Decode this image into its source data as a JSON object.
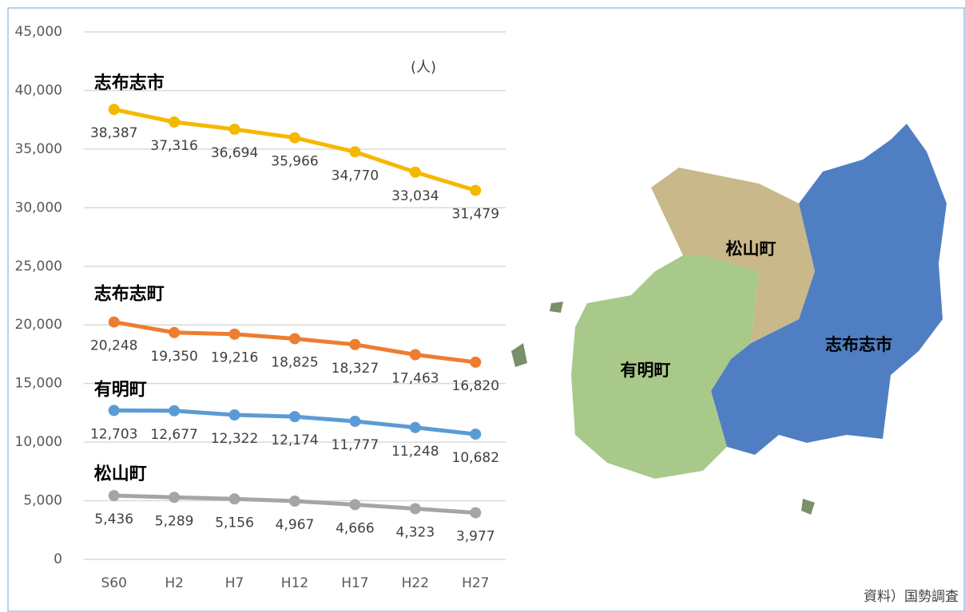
{
  "chart_data": {
    "type": "line",
    "unit": "(人)",
    "source": "資料）国勢調査",
    "categories": [
      "S60",
      "H2",
      "H7",
      "H12",
      "H17",
      "H22",
      "H27"
    ],
    "ylim": [
      0,
      45000
    ],
    "yticks": [
      0,
      {
        "value": 5000,
        "label": "5,000"
      },
      {
        "value": 10000,
        "label": "10,000"
      },
      {
        "value": 15000,
        "label": "15,000"
      },
      {
        "value": 20000,
        "label": "20,000"
      },
      {
        "value": 25000,
        "label": "25,000"
      },
      {
        "value": 30000,
        "label": "30,000"
      },
      {
        "value": 35000,
        "label": "35,000"
      },
      {
        "value": 40000,
        "label": "40,000"
      },
      {
        "value": 45000,
        "label": "45,000"
      }
    ],
    "grid": true,
    "series": [
      {
        "name": "志布志市",
        "color": "#f5b800",
        "values": [
          38387,
          37316,
          36694,
          35966,
          34770,
          33034,
          31479
        ],
        "value_labels": [
          "38,387",
          "37,316",
          "36,694",
          "35,966",
          "34,770",
          "33,034",
          "31,479"
        ]
      },
      {
        "name": "志布志町",
        "color": "#ed7d31",
        "values": [
          20248,
          19350,
          19216,
          18825,
          18327,
          17463,
          16820
        ],
        "value_labels": [
          "20,248",
          "19,350",
          "19,216",
          "18,825",
          "18,327",
          "17,463",
          "16,820"
        ]
      },
      {
        "name": "有明町",
        "color": "#5b9bd5",
        "values": [
          12703,
          12677,
          12322,
          12174,
          11777,
          11248,
          10682
        ],
        "value_labels": [
          "12,703",
          "12,677",
          "12,322",
          "12,174",
          "11,777",
          "11,248",
          "10,682"
        ]
      },
      {
        "name": "松山町",
        "color": "#a5a5a5",
        "values": [
          5436,
          5289,
          5156,
          4967,
          4666,
          4323,
          3977
        ],
        "value_labels": [
          "5,436",
          "5,289",
          "5,156",
          "4,967",
          "4,666",
          "4,323",
          "3,977"
        ]
      }
    ]
  }
}
